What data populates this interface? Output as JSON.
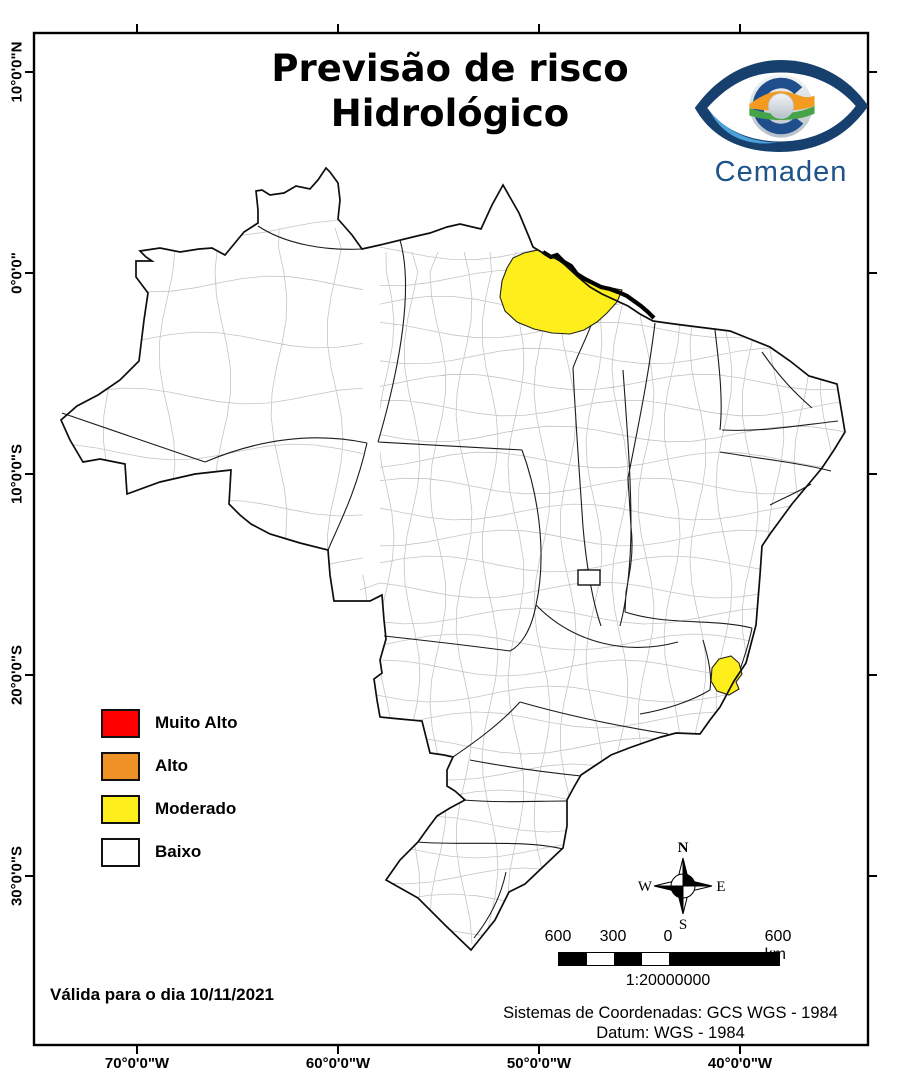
{
  "title": {
    "line1": "Previsão de risco",
    "line2": "Hidrológico"
  },
  "logo": {
    "brand": "Cemaden"
  },
  "legend": {
    "items": [
      {
        "label": "Muito Alto",
        "color": "#FE0000"
      },
      {
        "label": "Alto",
        "color": "#EE9227"
      },
      {
        "label": "Moderado",
        "color": "#FDEE1C"
      },
      {
        "label": "Baixo",
        "color": "#FFFFFF"
      }
    ]
  },
  "map": {
    "risk_regions": [
      {
        "location": "north",
        "level": "Moderado"
      },
      {
        "location": "southeast",
        "level": "Moderado"
      }
    ]
  },
  "validity_note": "Válida para o dia 10/11/2021",
  "compass": {
    "n": "N",
    "s": "S",
    "e": "E",
    "w": "W"
  },
  "scale_bar": {
    "labels": [
      "600",
      "300",
      "0",
      "600 km"
    ],
    "ratio": "1:20000000"
  },
  "projection": {
    "line1": "Sistemas de Coordenadas: GCS WGS - 1984",
    "line2": "Datum: WGS - 1984"
  },
  "axes": {
    "latitude": [
      "10°0'0\"N",
      "0°0'0\"",
      "10°0'0\"S",
      "20°0'0\"S",
      "30°0'0\"S"
    ],
    "longitude": [
      "70°0'0\"W",
      "60°0'0\"W",
      "50°0'0\"W",
      "40°0'0\"W"
    ]
  }
}
